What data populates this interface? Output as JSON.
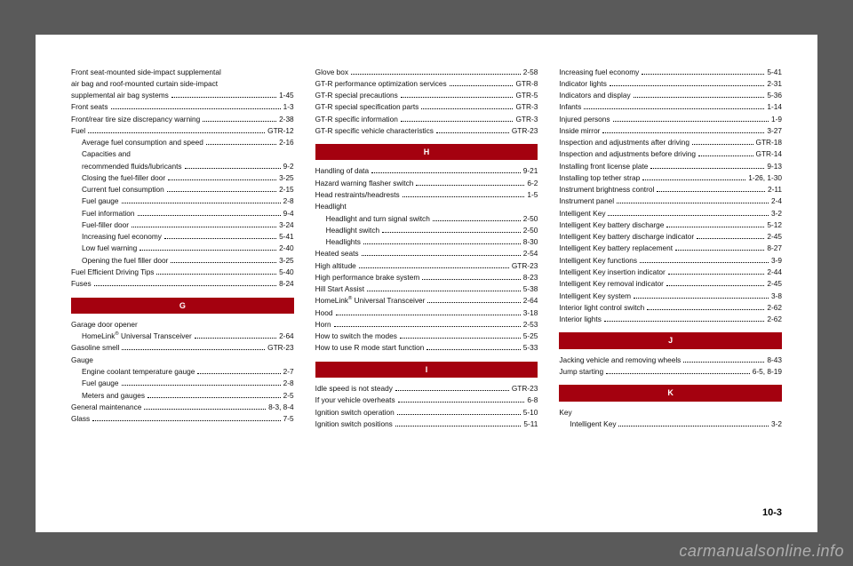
{
  "page_number": "10-3",
  "watermark": "carmanualsonline.info",
  "columns": [
    {
      "items": [
        {
          "type": "plain",
          "text": "Front seat-mounted side-impact supplemental"
        },
        {
          "type": "plain",
          "text": "air bag and roof-mounted curtain side-impact"
        },
        {
          "type": "entry",
          "label": "supplemental air bag systems",
          "page": "1-45"
        },
        {
          "type": "entry",
          "label": "Front seats",
          "page": "1-3"
        },
        {
          "type": "entry",
          "label": "Front/rear tire size discrepancy warning",
          "page": "2-38"
        },
        {
          "type": "entry",
          "label": "Fuel",
          "page": "GTR-12"
        },
        {
          "type": "entry",
          "indent": 1,
          "label": "Average fuel consumption and speed",
          "page": "2-16"
        },
        {
          "type": "plain",
          "indent": 1,
          "text": "Capacities and"
        },
        {
          "type": "entry",
          "indent": 1,
          "label": "recommended fluids/lubricants",
          "page": "9-2"
        },
        {
          "type": "entry",
          "indent": 1,
          "label": "Closing the fuel-filler door",
          "page": "3-25"
        },
        {
          "type": "entry",
          "indent": 1,
          "label": "Current fuel consumption",
          "page": "2-15"
        },
        {
          "type": "entry",
          "indent": 1,
          "label": "Fuel gauge",
          "page": "2-8"
        },
        {
          "type": "entry",
          "indent": 1,
          "label": "Fuel information",
          "page": "9-4"
        },
        {
          "type": "entry",
          "indent": 1,
          "label": "Fuel-filler door",
          "page": "3-24"
        },
        {
          "type": "entry",
          "indent": 1,
          "label": "Increasing fuel economy",
          "page": "5-41"
        },
        {
          "type": "entry",
          "indent": 1,
          "label": "Low fuel warning",
          "page": "2-40"
        },
        {
          "type": "entry",
          "indent": 1,
          "label": "Opening the fuel filler door",
          "page": "3-25"
        },
        {
          "type": "entry",
          "label": "Fuel Efficient Driving Tips",
          "page": "5-40"
        },
        {
          "type": "entry",
          "label": "Fuses",
          "page": "8-24"
        },
        {
          "type": "header",
          "text": "G"
        },
        {
          "type": "plain",
          "text": "Garage door opener"
        },
        {
          "type": "entry",
          "indent": 1,
          "label": "HomeLink® Universal Transceiver",
          "page": "2-64"
        },
        {
          "type": "entry",
          "label": "Gasoline smell",
          "page": "GTR-23"
        },
        {
          "type": "plain",
          "text": "Gauge"
        },
        {
          "type": "entry",
          "indent": 1,
          "label": "Engine coolant temperature gauge",
          "page": "2-7"
        },
        {
          "type": "entry",
          "indent": 1,
          "label": "Fuel gauge",
          "page": "2-8"
        },
        {
          "type": "entry",
          "indent": 1,
          "label": "Meters and gauges",
          "page": "2-5"
        },
        {
          "type": "entry",
          "label": "General maintenance",
          "page": "8-3, 8-4"
        },
        {
          "type": "entry",
          "label": "Glass",
          "page": "7-5"
        }
      ]
    },
    {
      "items": [
        {
          "type": "entry",
          "label": "Glove box",
          "page": "2-58"
        },
        {
          "type": "entry",
          "label": "GT-R performance optimization services",
          "page": "GTR-8"
        },
        {
          "type": "entry",
          "label": "GT-R special precautions",
          "page": "GTR-5"
        },
        {
          "type": "entry",
          "label": "GT-R special specification parts",
          "page": "GTR-3"
        },
        {
          "type": "entry",
          "label": "GT-R specific information",
          "page": "GTR-3"
        },
        {
          "type": "entry",
          "label": "GT-R specific vehicle characteristics",
          "page": "GTR-23"
        },
        {
          "type": "header",
          "text": "H"
        },
        {
          "type": "entry",
          "label": "Handling of data",
          "page": "9-21"
        },
        {
          "type": "entry",
          "label": "Hazard warning flasher switch",
          "page": "6-2"
        },
        {
          "type": "entry",
          "label": "Head restraints/headrests",
          "page": "1-5"
        },
        {
          "type": "plain",
          "text": "Headlight"
        },
        {
          "type": "entry",
          "indent": 1,
          "label": "Headlight and turn signal switch",
          "page": "2-50"
        },
        {
          "type": "entry",
          "indent": 1,
          "label": "Headlight switch",
          "page": "2-50"
        },
        {
          "type": "entry",
          "indent": 1,
          "label": "Headlights",
          "page": "8-30"
        },
        {
          "type": "entry",
          "label": "Heated seats",
          "page": "2-54"
        },
        {
          "type": "entry",
          "label": "High altitude",
          "page": "GTR-23"
        },
        {
          "type": "entry",
          "label": "High performance brake system",
          "page": "8-23"
        },
        {
          "type": "entry",
          "label": "Hill Start Assist",
          "page": "5-38"
        },
        {
          "type": "entry",
          "label": "HomeLink® Universal Transceiver",
          "page": "2-64"
        },
        {
          "type": "entry",
          "label": "Hood",
          "page": "3-18"
        },
        {
          "type": "entry",
          "label": "Horn",
          "page": "2-53"
        },
        {
          "type": "entry",
          "label": "How to switch the modes",
          "page": "5-25"
        },
        {
          "type": "entry",
          "label": "How to use R mode start function",
          "page": "5-33"
        },
        {
          "type": "header",
          "text": "I"
        },
        {
          "type": "entry",
          "label": "Idle speed is not steady",
          "page": "GTR-23"
        },
        {
          "type": "entry",
          "label": "If your vehicle overheats",
          "page": "6-8"
        },
        {
          "type": "entry",
          "label": "Ignition switch operation",
          "page": "5-10"
        },
        {
          "type": "entry",
          "label": "Ignition switch positions",
          "page": "5-11"
        }
      ]
    },
    {
      "items": [
        {
          "type": "entry",
          "label": "Increasing fuel economy",
          "page": "5-41"
        },
        {
          "type": "entry",
          "label": "Indicator lights",
          "page": "2-31"
        },
        {
          "type": "entry",
          "label": "Indicators and display",
          "page": "5-36"
        },
        {
          "type": "entry",
          "label": "Infants",
          "page": "1-14"
        },
        {
          "type": "entry",
          "label": "Injured persons",
          "page": "1-9"
        },
        {
          "type": "entry",
          "label": "Inside mirror",
          "page": "3-27"
        },
        {
          "type": "entry",
          "label": "Inspection and adjustments after driving",
          "page": "GTR-18"
        },
        {
          "type": "entry",
          "label": "Inspection and adjustments before driving",
          "page": "GTR-14"
        },
        {
          "type": "entry",
          "label": "Installing front license plate",
          "page": "9-13"
        },
        {
          "type": "entry",
          "label": "Installing top tether strap",
          "page": "1-26, 1-30"
        },
        {
          "type": "entry",
          "label": "Instrument brightness control",
          "page": "2-11"
        },
        {
          "type": "entry",
          "label": "Instrument panel",
          "page": "2-4"
        },
        {
          "type": "entry",
          "label": "Intelligent Key",
          "page": "3-2"
        },
        {
          "type": "entry",
          "label": "Intelligent Key battery discharge",
          "page": "5-12"
        },
        {
          "type": "entry",
          "label": "Intelligent Key battery discharge indicator",
          "page": "2-45"
        },
        {
          "type": "entry",
          "label": "Intelligent Key battery replacement",
          "page": "8-27"
        },
        {
          "type": "entry",
          "label": "Intelligent Key functions",
          "page": "3-9"
        },
        {
          "type": "entry",
          "label": "Intelligent Key insertion indicator",
          "page": "2-44"
        },
        {
          "type": "entry",
          "label": "Intelligent Key removal indicator",
          "page": "2-45"
        },
        {
          "type": "entry",
          "label": "Intelligent Key system",
          "page": "3-8"
        },
        {
          "type": "entry",
          "label": "Interior light control switch",
          "page": "2-62"
        },
        {
          "type": "entry",
          "label": "Interior lights",
          "page": "2-62"
        },
        {
          "type": "header",
          "text": "J"
        },
        {
          "type": "entry",
          "label": "Jacking vehicle and removing wheels",
          "page": "8-43"
        },
        {
          "type": "entry",
          "label": "Jump starting",
          "page": "6-5, 8-19"
        },
        {
          "type": "header",
          "text": "K"
        },
        {
          "type": "plain",
          "text": "Key"
        },
        {
          "type": "entry",
          "indent": 1,
          "label": "Intelligent Key",
          "page": "3-2"
        }
      ]
    }
  ]
}
